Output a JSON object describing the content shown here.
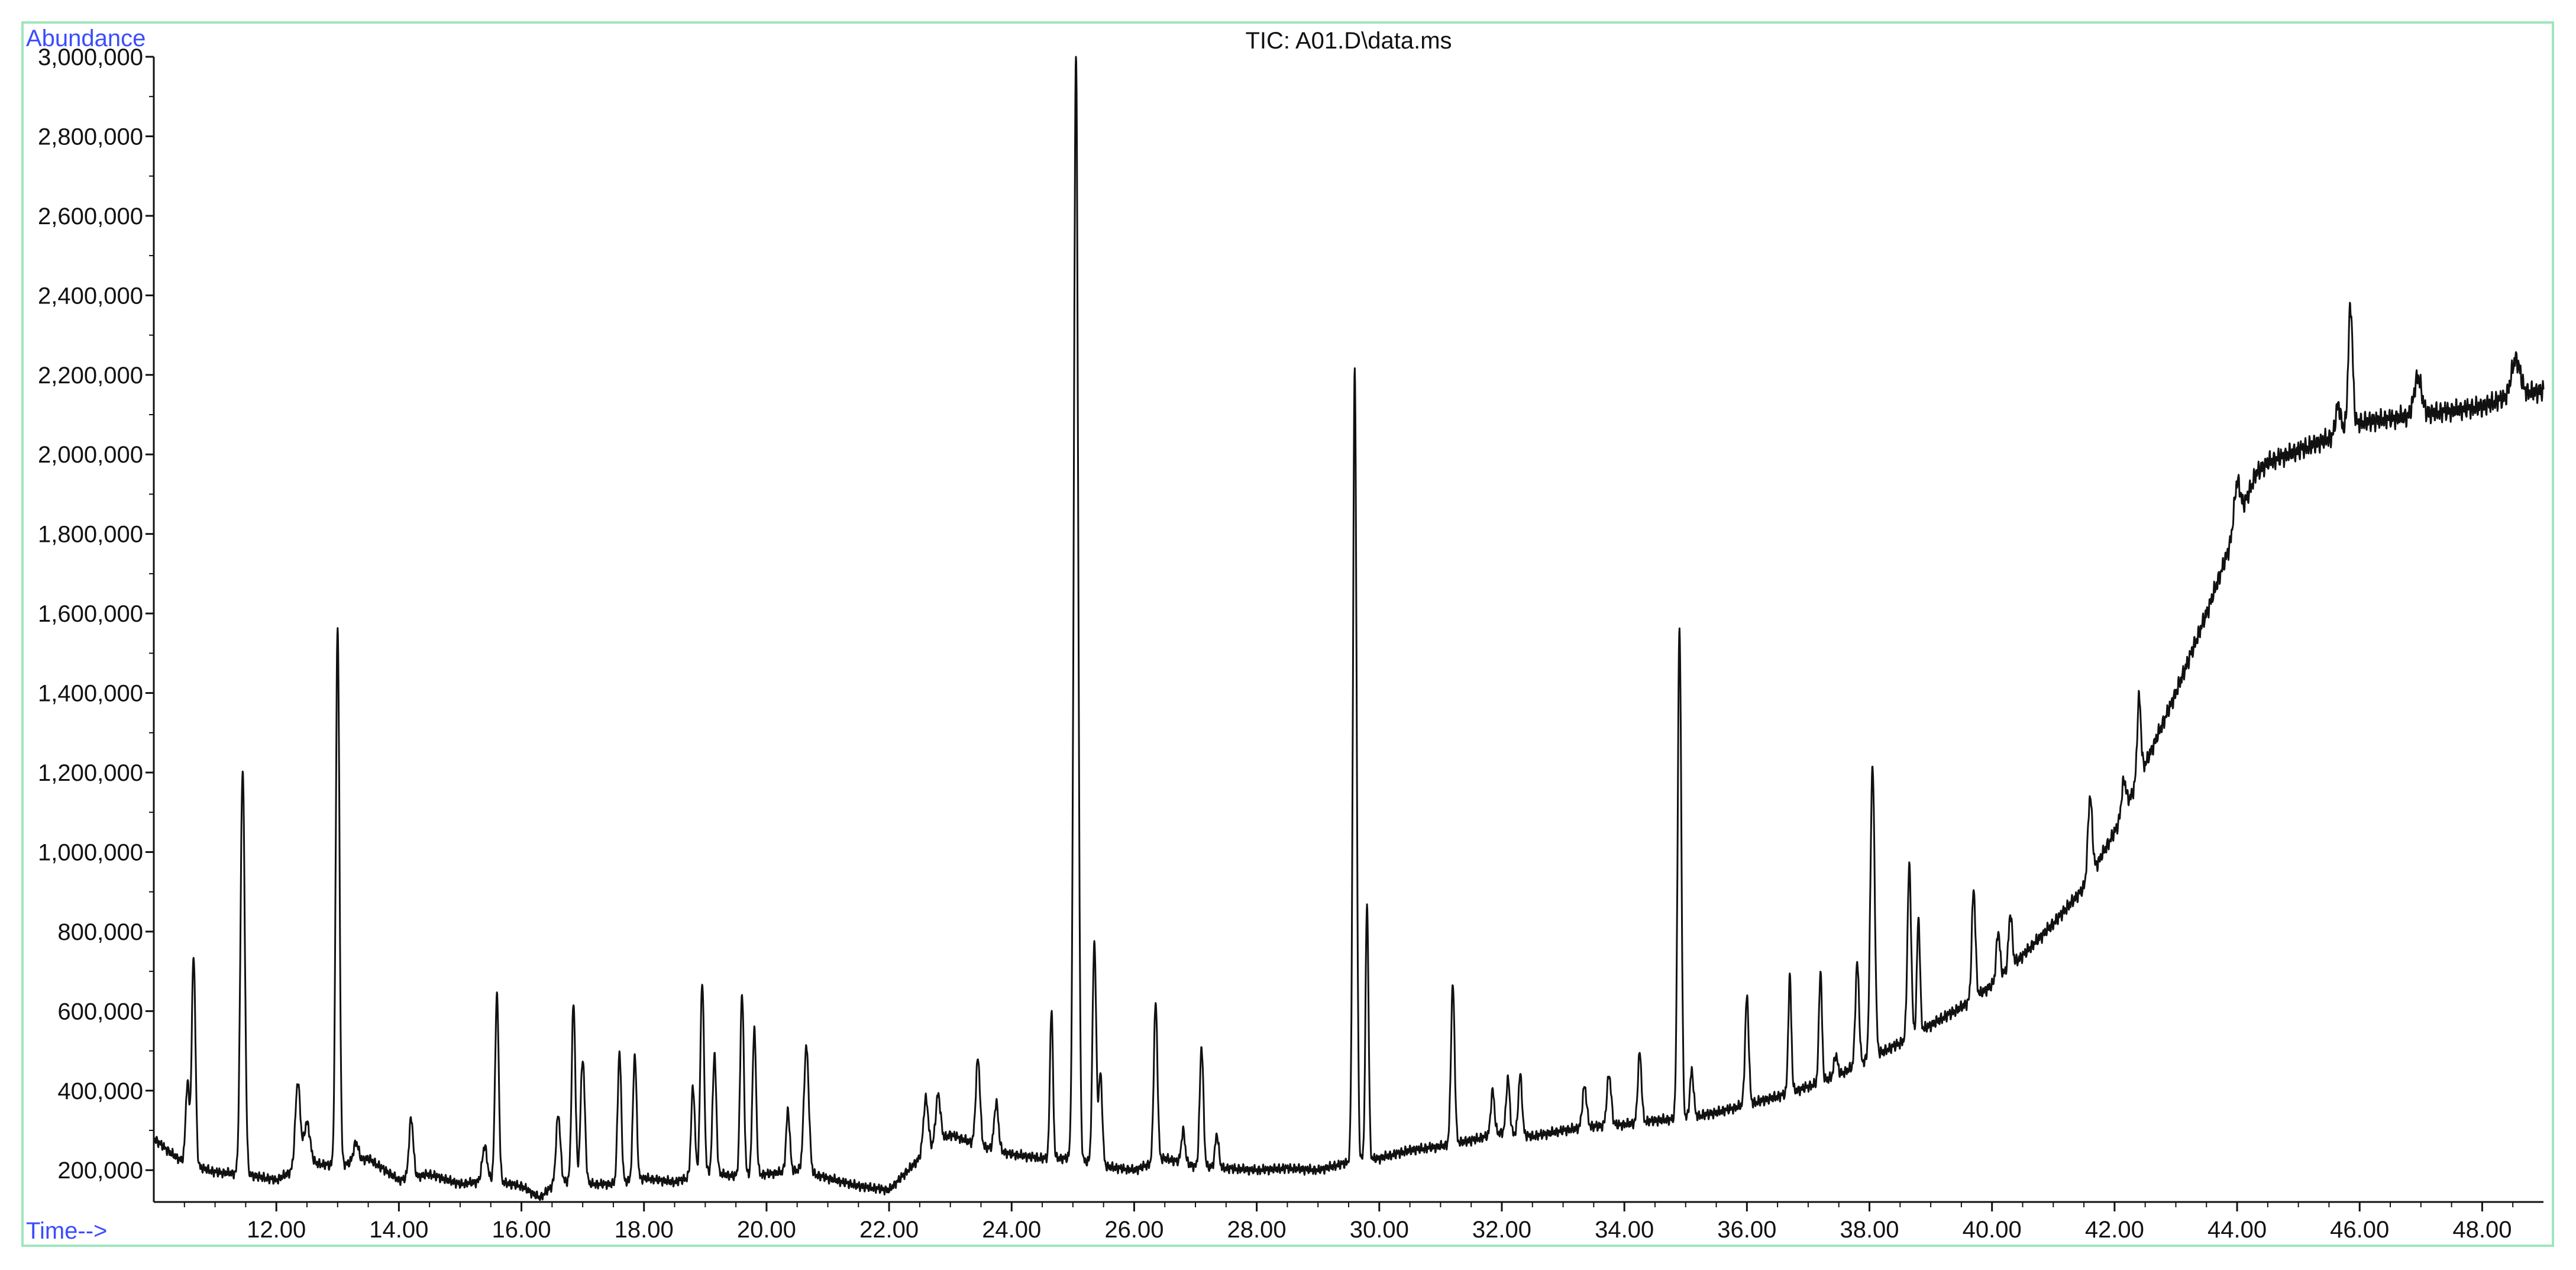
{
  "chart_data": {
    "type": "line",
    "title": "TIC: A01.D\\data.ms",
    "ylabel": "Abundance",
    "xlabel": "Time-->",
    "xlim": [
      10.0,
      49.0
    ],
    "ylim": [
      120000,
      3000000
    ],
    "y_ticks": [
      200000,
      400000,
      600000,
      800000,
      1000000,
      1200000,
      1400000,
      1600000,
      1800000,
      2000000,
      2200000,
      2400000,
      2600000,
      2800000,
      3000000
    ],
    "y_tick_labels": [
      "200,000",
      "400,000",
      "600,000",
      "800,000",
      "1,000,000",
      "1,200,000",
      "1,400,000",
      "1,600,000",
      "1,800,000",
      "2,000,000",
      "2,200,000",
      "2,400,000",
      "2,600,000",
      "2,800,000",
      "3,000,000"
    ],
    "x_ticks": [
      12,
      14,
      16,
      18,
      20,
      22,
      24,
      26,
      28,
      30,
      32,
      34,
      36,
      38,
      40,
      42,
      44,
      46,
      48
    ],
    "x_tick_labels": [
      "12.00",
      "14.00",
      "16.00",
      "18.00",
      "20.00",
      "22.00",
      "24.00",
      "26.00",
      "28.00",
      "30.00",
      "32.00",
      "34.00",
      "36.00",
      "38.00",
      "40.00",
      "42.00",
      "44.00",
      "46.00",
      "48.00"
    ],
    "grid": false,
    "series": [
      {
        "color": "#111111",
        "baseline": [
          [
            10.0,
            280000
          ],
          [
            10.3,
            240000
          ],
          [
            10.5,
            220000
          ],
          [
            11.0,
            195000
          ],
          [
            11.5,
            190000
          ],
          [
            12.0,
            175000
          ],
          [
            12.5,
            220000
          ],
          [
            13.0,
            210000
          ],
          [
            13.5,
            230000
          ],
          [
            14.0,
            175000
          ],
          [
            14.5,
            190000
          ],
          [
            15.0,
            165000
          ],
          [
            15.5,
            175000
          ],
          [
            16.0,
            160000
          ],
          [
            16.3,
            130000
          ],
          [
            16.6,
            175000
          ],
          [
            17.0,
            165000
          ],
          [
            17.5,
            165000
          ],
          [
            18.0,
            180000
          ],
          [
            18.5,
            170000
          ],
          [
            19.0,
            195000
          ],
          [
            19.5,
            185000
          ],
          [
            20.0,
            190000
          ],
          [
            20.5,
            200000
          ],
          [
            21.0,
            180000
          ],
          [
            21.5,
            160000
          ],
          [
            22.0,
            150000
          ],
          [
            22.5,
            230000
          ],
          [
            23.0,
            290000
          ],
          [
            23.5,
            260000
          ],
          [
            24.0,
            240000
          ],
          [
            24.5,
            230000
          ],
          [
            25.0,
            230000
          ],
          [
            25.5,
            210000
          ],
          [
            26.0,
            200000
          ],
          [
            26.5,
            230000
          ],
          [
            27.0,
            210000
          ],
          [
            27.5,
            205000
          ],
          [
            28.0,
            200000
          ],
          [
            28.5,
            205000
          ],
          [
            29.0,
            200000
          ],
          [
            29.5,
            220000
          ],
          [
            30.0,
            230000
          ],
          [
            30.5,
            250000
          ],
          [
            31.0,
            260000
          ],
          [
            31.5,
            275000
          ],
          [
            32.0,
            295000
          ],
          [
            32.5,
            285000
          ],
          [
            33.0,
            300000
          ],
          [
            33.5,
            310000
          ],
          [
            34.0,
            315000
          ],
          [
            34.5,
            325000
          ],
          [
            35.0,
            330000
          ],
          [
            35.5,
            345000
          ],
          [
            36.0,
            365000
          ],
          [
            36.5,
            385000
          ],
          [
            37.0,
            410000
          ],
          [
            37.5,
            440000
          ],
          [
            38.0,
            480000
          ],
          [
            38.5,
            520000
          ],
          [
            39.0,
            565000
          ],
          [
            39.5,
            610000
          ],
          [
            40.0,
            665000
          ],
          [
            40.5,
            740000
          ],
          [
            41.0,
            820000
          ],
          [
            41.5,
            910000
          ],
          [
            42.0,
            1050000
          ],
          [
            42.5,
            1220000
          ],
          [
            43.0,
            1400000
          ],
          [
            43.5,
            1600000
          ],
          [
            44.0,
            1820000
          ],
          [
            44.3,
            1950000
          ],
          [
            44.5,
            1980000
          ],
          [
            45.0,
            2010000
          ],
          [
            45.5,
            2040000
          ],
          [
            46.0,
            2080000
          ],
          [
            46.5,
            2090000
          ],
          [
            47.0,
            2100000
          ],
          [
            47.5,
            2110000
          ],
          [
            48.0,
            2120000
          ],
          [
            48.5,
            2150000
          ],
          [
            49.0,
            2160000
          ]
        ],
        "peaks": [
          [
            10.55,
            420000,
            0.03
          ],
          [
            10.65,
            740000,
            0.03
          ],
          [
            11.45,
            1210000,
            0.035
          ],
          [
            12.35,
            420000,
            0.04
          ],
          [
            12.5,
            320000,
            0.05
          ],
          [
            13.0,
            1570000,
            0.03
          ],
          [
            13.3,
            270000,
            0.04
          ],
          [
            14.2,
            330000,
            0.035
          ],
          [
            15.4,
            260000,
            0.04
          ],
          [
            15.6,
            640000,
            0.03
          ],
          [
            16.6,
            340000,
            0.035
          ],
          [
            16.85,
            620000,
            0.03
          ],
          [
            17.0,
            480000,
            0.035
          ],
          [
            17.6,
            495000,
            0.03
          ],
          [
            17.85,
            490000,
            0.03
          ],
          [
            18.8,
            410000,
            0.03
          ],
          [
            18.95,
            675000,
            0.03
          ],
          [
            19.15,
            490000,
            0.03
          ],
          [
            19.6,
            645000,
            0.03
          ],
          [
            19.8,
            555000,
            0.03
          ],
          [
            20.35,
            350000,
            0.03
          ],
          [
            20.65,
            510000,
            0.04
          ],
          [
            22.6,
            380000,
            0.04
          ],
          [
            22.8,
            390000,
            0.04
          ],
          [
            23.45,
            480000,
            0.035
          ],
          [
            23.75,
            370000,
            0.035
          ],
          [
            24.65,
            605000,
            0.025
          ],
          [
            25.05,
            3010000,
            0.035
          ],
          [
            25.35,
            775000,
            0.03
          ],
          [
            25.45,
            440000,
            0.03
          ],
          [
            26.35,
            620000,
            0.03
          ],
          [
            26.8,
            300000,
            0.03
          ],
          [
            27.1,
            510000,
            0.03
          ],
          [
            27.35,
            290000,
            0.03
          ],
          [
            29.6,
            2210000,
            0.03
          ],
          [
            29.8,
            870000,
            0.025
          ],
          [
            31.2,
            665000,
            0.03
          ],
          [
            31.85,
            400000,
            0.03
          ],
          [
            32.1,
            430000,
            0.03
          ],
          [
            32.3,
            440000,
            0.03
          ],
          [
            33.35,
            410000,
            0.035
          ],
          [
            33.75,
            440000,
            0.035
          ],
          [
            34.25,
            495000,
            0.03
          ],
          [
            34.9,
            1560000,
            0.03
          ],
          [
            35.1,
            450000,
            0.03
          ],
          [
            36.0,
            635000,
            0.03
          ],
          [
            36.7,
            685000,
            0.025
          ],
          [
            37.2,
            700000,
            0.025
          ],
          [
            37.45,
            490000,
            0.03
          ],
          [
            37.8,
            720000,
            0.03
          ],
          [
            38.05,
            1215000,
            0.035
          ],
          [
            38.65,
            965000,
            0.03
          ],
          [
            38.8,
            835000,
            0.025
          ],
          [
            39.7,
            905000,
            0.03
          ],
          [
            40.1,
            800000,
            0.03
          ],
          [
            40.3,
            845000,
            0.03
          ],
          [
            41.6,
            1140000,
            0.035
          ],
          [
            42.15,
            1180000,
            0.035
          ],
          [
            42.4,
            1390000,
            0.03
          ],
          [
            44.0,
            1930000,
            0.05
          ],
          [
            45.65,
            2125000,
            0.04
          ],
          [
            45.85,
            2375000,
            0.035
          ],
          [
            46.95,
            2195000,
            0.06
          ],
          [
            48.55,
            2240000,
            0.07
          ]
        ]
      }
    ]
  }
}
